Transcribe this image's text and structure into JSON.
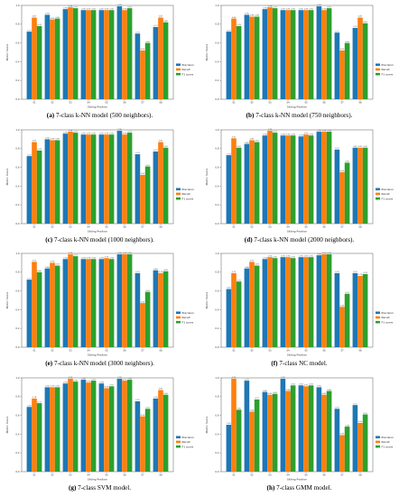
{
  "series_names": [
    "Precision",
    "Recall",
    "F1 score"
  ],
  "series_colors": [
    "#1f77b4",
    "#ff7f0e",
    "#2ca02c"
  ],
  "categories": [
    "S1",
    "S2",
    "S3",
    "S4",
    "S5",
    "S6",
    "S7",
    "S8"
  ],
  "xlabel": "Sitting Position",
  "ylabel": "Metric Score",
  "ylim": [
    0,
    1
  ],
  "yticks": [
    "0.0",
    "0.2",
    "0.4",
    "0.6",
    "0.8",
    "1.0"
  ],
  "chart_data": [
    {
      "type": "bar",
      "tag": "(a)",
      "caption": "7-class k-NN model (500 neighbors).",
      "categories": [
        "S1",
        "S2",
        "S3",
        "S4",
        "S5",
        "S6",
        "S7",
        "S8"
      ],
      "ylim": [
        0,
        1
      ],
      "series": [
        {
          "name": "Precision",
          "values": [
            0.72,
            0.9,
            0.96,
            0.95,
            0.95,
            0.99,
            0.7,
            0.77
          ]
        },
        {
          "name": "Recall",
          "values": [
            0.87,
            0.85,
            0.98,
            0.95,
            0.95,
            0.95,
            0.52,
            0.87
          ]
        },
        {
          "name": "F1 score",
          "values": [
            0.78,
            0.86,
            0.97,
            0.95,
            0.95,
            0.97,
            0.6,
            0.82
          ]
        }
      ]
    },
    {
      "type": "bar",
      "tag": "(b)",
      "caption": "7-class k-NN model (750 neighbors).",
      "categories": [
        "S1",
        "S2",
        "S3",
        "S4",
        "S5",
        "S6",
        "S7",
        "S8"
      ],
      "ylim": [
        0,
        1
      ],
      "series": [
        {
          "name": "Precision",
          "values": [
            0.72,
            0.9,
            0.96,
            0.95,
            0.95,
            0.99,
            0.71,
            0.76
          ]
        },
        {
          "name": "Recall",
          "values": [
            0.86,
            0.88,
            0.98,
            0.95,
            0.95,
            0.95,
            0.52,
            0.87
          ]
        },
        {
          "name": "F1 score",
          "values": [
            0.78,
            0.88,
            0.97,
            0.95,
            0.95,
            0.97,
            0.6,
            0.81
          ]
        }
      ]
    },
    {
      "type": "bar",
      "tag": "(c)",
      "caption": "7-class k-NN model (1000 neighbors).",
      "categories": [
        "S1",
        "S2",
        "S3",
        "S4",
        "S5",
        "S6",
        "S7",
        "S8"
      ],
      "ylim": [
        0,
        1
      ],
      "series": [
        {
          "name": "Precision",
          "values": [
            0.72,
            0.9,
            0.96,
            0.95,
            0.95,
            0.99,
            0.74,
            0.77
          ]
        },
        {
          "name": "Recall",
          "values": [
            0.87,
            0.89,
            0.98,
            0.95,
            0.95,
            0.95,
            0.52,
            0.87
          ]
        },
        {
          "name": "F1 score",
          "values": [
            0.78,
            0.89,
            0.97,
            0.95,
            0.95,
            0.97,
            0.61,
            0.81
          ]
        }
      ]
    },
    {
      "type": "bar",
      "tag": "(d)",
      "caption": "7-class k-NN model (2000 neighbors).",
      "categories": [
        "S1",
        "S2",
        "S3",
        "S4",
        "S5",
        "S6",
        "S7",
        "S8"
      ],
      "ylim": [
        0,
        1
      ],
      "series": [
        {
          "name": "Precision",
          "values": [
            0.73,
            0.85,
            0.94,
            0.94,
            0.93,
            0.98,
            0.79,
            0.81
          ]
        },
        {
          "name": "Recall",
          "values": [
            0.91,
            0.89,
            0.99,
            0.94,
            0.95,
            0.98,
            0.55,
            0.81
          ]
        },
        {
          "name": "F1 score",
          "values": [
            0.81,
            0.87,
            0.97,
            0.94,
            0.94,
            0.98,
            0.65,
            0.81
          ]
        }
      ]
    },
    {
      "type": "bar",
      "tag": "(e)",
      "caption": "7-class k-NN model (3000 neighbors).",
      "categories": [
        "S1",
        "S2",
        "S3",
        "S4",
        "S5",
        "S6",
        "S7",
        "S8"
      ],
      "ylim": [
        0,
        1
      ],
      "series": [
        {
          "name": "Precision",
          "values": [
            0.72,
            0.84,
            0.94,
            0.94,
            0.94,
            0.99,
            0.79,
            0.82
          ]
        },
        {
          "name": "Recall",
          "values": [
            0.91,
            0.9,
            0.99,
            0.94,
            0.95,
            0.99,
            0.47,
            0.79
          ]
        },
        {
          "name": "F1 score",
          "values": [
            0.8,
            0.87,
            0.97,
            0.94,
            0.94,
            0.99,
            0.59,
            0.81
          ]
        }
      ]
    },
    {
      "type": "bar",
      "tag": "(f)",
      "caption": "7-class NC model.",
      "categories": [
        "S1",
        "S2",
        "S3",
        "S4",
        "S5",
        "S6",
        "S7",
        "S8"
      ],
      "ylim": [
        0,
        1
      ],
      "series": [
        {
          "name": "Precision",
          "values": [
            0.62,
            0.84,
            0.94,
            0.96,
            0.96,
            0.98,
            0.79,
            0.79
          ]
        },
        {
          "name": "Recall",
          "values": [
            0.79,
            0.91,
            0.96,
            0.96,
            0.96,
            0.99,
            0.43,
            0.76
          ]
        },
        {
          "name": "F1 score",
          "values": [
            0.7,
            0.87,
            0.95,
            0.95,
            0.96,
            0.99,
            0.57,
            0.78
          ]
        }
      ]
    },
    {
      "type": "bar",
      "tag": "(g)",
      "caption": "7-class SVM model.",
      "categories": [
        "S1",
        "S2",
        "S3",
        "S4",
        "S5",
        "S6",
        "S7",
        "S8"
      ],
      "ylim": [
        0,
        1
      ],
      "series": [
        {
          "name": "Precision",
          "values": [
            0.69,
            0.9,
            0.94,
            0.98,
            0.94,
            0.99,
            0.75,
            0.78
          ]
        },
        {
          "name": "Recall",
          "values": [
            0.78,
            0.9,
            0.99,
            0.95,
            0.89,
            0.97,
            0.59,
            0.87
          ]
        },
        {
          "name": "F1 score",
          "values": [
            0.73,
            0.9,
            0.96,
            0.97,
            0.91,
            0.98,
            0.67,
            0.82
          ]
        }
      ]
    },
    {
      "type": "bar",
      "tag": "(h)",
      "caption": "7-class GMM model.",
      "categories": [
        "S1",
        "S2",
        "S3",
        "S4",
        "S5",
        "S6",
        "S7",
        "S8"
      ],
      "ylim": [
        0,
        1
      ],
      "series": [
        {
          "name": "Precision",
          "values": [
            0.5,
            0.97,
            0.85,
            0.99,
            0.92,
            0.9,
            0.67,
            0.71
          ]
        },
        {
          "name": "Recall",
          "values": [
            0.99,
            0.64,
            0.82,
            0.86,
            0.91,
            0.82,
            0.39,
            0.52
          ]
        },
        {
          "name": "F1 score",
          "values": [
            0.66,
            0.77,
            0.83,
            0.92,
            0.92,
            0.86,
            0.48,
            0.61
          ]
        }
      ]
    }
  ]
}
